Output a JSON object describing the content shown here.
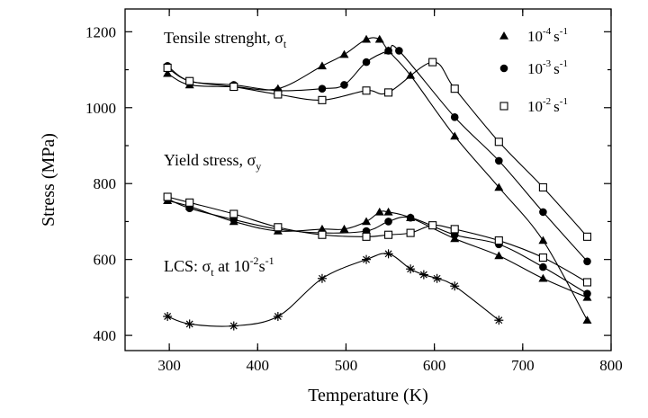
{
  "chart_data": {
    "type": "line",
    "xlabel": "Temperature (K)",
    "ylabel": "Stress (MPa)",
    "xlim": [
      250,
      800
    ],
    "ylim": [
      360,
      1260
    ],
    "xticks": [
      300,
      400,
      500,
      600,
      700,
      800
    ],
    "yticks": [
      400,
      600,
      800,
      1000,
      1200
    ],
    "grid": false,
    "legend_position": "top-right",
    "legend": [
      {
        "base": "10",
        "exp": "-4",
        "unit": "s",
        "unit_exp": "-1",
        "marker": "triangle"
      },
      {
        "base": "10",
        "exp": "-3",
        "unit": "s",
        "unit_exp": "-1",
        "marker": "circle"
      },
      {
        "base": "10",
        "exp": "-2",
        "unit": "s",
        "unit_exp": "-1",
        "marker": "square-open"
      }
    ],
    "annotations": {
      "tensile": {
        "text": "Tensile strenght, ",
        "sym": "σ",
        "sub": "t"
      },
      "yield": {
        "text": "Yield stress, ",
        "sym": "σ",
        "sub": "y"
      },
      "lcs": {
        "text": "LCS: ",
        "sym": "σ",
        "sub": "t",
        "rest": " at 10",
        "sup": "-2",
        "unit": "s",
        "unit_sup": "-1"
      }
    },
    "series": [
      {
        "group": "tensile",
        "marker": "triangle",
        "x": [
          298,
          323,
          373,
          423,
          473,
          498,
          523,
          538,
          548,
          573,
          623,
          673,
          723,
          773
        ],
        "y": [
          1090,
          1060,
          1055,
          1050,
          1110,
          1140,
          1180,
          1180,
          1150,
          1085,
          925,
          790,
          650,
          440
        ]
      },
      {
        "group": "tensile",
        "marker": "circle",
        "x": [
          298,
          323,
          373,
          423,
          473,
          498,
          523,
          548,
          560,
          623,
          673,
          723,
          773
        ],
        "y": [
          1110,
          1070,
          1060,
          1045,
          1050,
          1060,
          1120,
          1150,
          1150,
          975,
          860,
          725,
          595
        ]
      },
      {
        "group": "tensile",
        "marker": "square-open",
        "x": [
          298,
          323,
          373,
          423,
          473,
          523,
          548,
          598,
          623,
          673,
          723,
          773
        ],
        "y": [
          1105,
          1070,
          1055,
          1035,
          1020,
          1045,
          1040,
          1120,
          1050,
          910,
          790,
          660
        ]
      },
      {
        "group": "yield",
        "marker": "triangle",
        "x": [
          298,
          323,
          373,
          423,
          473,
          498,
          523,
          538,
          548,
          573,
          623,
          673,
          723,
          773
        ],
        "y": [
          755,
          740,
          700,
          675,
          680,
          680,
          700,
          725,
          725,
          710,
          655,
          610,
          550,
          500
        ]
      },
      {
        "group": "yield",
        "marker": "circle",
        "x": [
          298,
          323,
          373,
          423,
          473,
          523,
          548,
          573,
          623,
          673,
          723,
          773
        ],
        "y": [
          760,
          735,
          705,
          680,
          670,
          675,
          700,
          710,
          665,
          640,
          580,
          510
        ]
      },
      {
        "group": "yield",
        "marker": "square-open",
        "x": [
          298,
          323,
          373,
          423,
          473,
          523,
          548,
          573,
          598,
          623,
          673,
          723,
          773
        ],
        "y": [
          765,
          750,
          720,
          685,
          665,
          660,
          665,
          670,
          690,
          680,
          650,
          605,
          540
        ]
      },
      {
        "group": "lcs",
        "marker": "asterisk",
        "x": [
          298,
          323,
          373,
          423,
          473,
          523,
          548,
          573,
          588,
          603,
          623,
          673
        ],
        "y": [
          450,
          430,
          425,
          450,
          550,
          600,
          615,
          575,
          560,
          550,
          530,
          440
        ]
      }
    ]
  }
}
